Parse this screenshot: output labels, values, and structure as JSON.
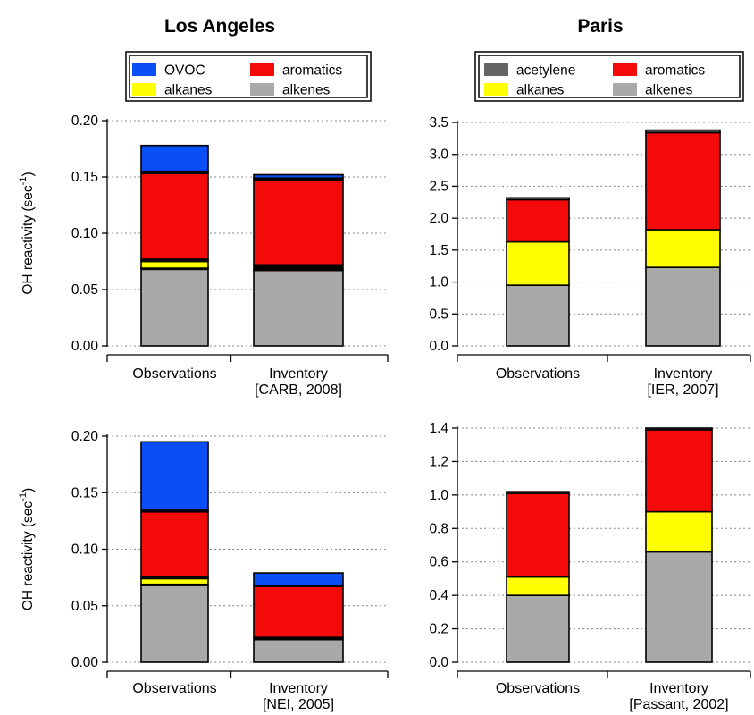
{
  "column_titles": [
    "Los Angeles",
    "Paris"
  ],
  "y_axis_label": "OH reactivity (sec",
  "y_axis_label_sup": "-1",
  "y_axis_label_end": ")",
  "colors": {
    "OVOC": "#0a4ff5",
    "aromatics": "#f50a0a",
    "alkanes": "#ffff00",
    "alkenes": "#a9a9a9",
    "acetylene": "#646464",
    "other": "#000000"
  },
  "chart_data": [
    {
      "type": "bar",
      "stacked": true,
      "column_title": "Los Angeles",
      "legend": {
        "entries": [
          "OVOC",
          "aromatics",
          "alkanes",
          "alkenes"
        ],
        "placement": "top"
      },
      "ylim": [
        0,
        0.2
      ],
      "yticks": [
        "0.00",
        "0.05",
        "0.10",
        "0.15",
        "0.20"
      ],
      "grid": true,
      "categories": [
        [
          "Observations"
        ],
        [
          "Inventory",
          "[CARB, 2008]"
        ]
      ],
      "series": [
        {
          "name": "alkenes",
          "values": [
            0.068,
            0.067
          ]
        },
        {
          "name": "other",
          "values": [
            0.001,
            0.005
          ]
        },
        {
          "name": "alkanes",
          "values": [
            0.006,
            0.0
          ]
        },
        {
          "name": "other",
          "values": [
            0.002,
            0.0
          ]
        },
        {
          "name": "aromatics",
          "values": [
            0.076,
            0.075
          ]
        },
        {
          "name": "other",
          "values": [
            0.002,
            0.002
          ]
        },
        {
          "name": "OVOC",
          "values": [
            0.023,
            0.003
          ]
        }
      ]
    },
    {
      "type": "bar",
      "stacked": true,
      "column_title": "Paris",
      "legend": {
        "entries": [
          "acetylene",
          "aromatics",
          "alkanes",
          "alkenes"
        ],
        "placement": "top"
      },
      "ylim": [
        0,
        3.5
      ],
      "yticks": [
        "0.0",
        "0.5",
        "1.0",
        "1.5",
        "2.0",
        "2.5",
        "3.0",
        "3.5"
      ],
      "grid": true,
      "categories": [
        [
          "Observations"
        ],
        [
          "Inventory",
          "[IER, 2007]"
        ]
      ],
      "series": [
        {
          "name": "alkenes",
          "values": [
            0.95,
            1.23
          ]
        },
        {
          "name": "alkanes",
          "values": [
            0.68,
            0.59
          ]
        },
        {
          "name": "aromatics",
          "values": [
            0.66,
            1.52
          ]
        },
        {
          "name": "acetylene",
          "values": [
            0.03,
            0.04
          ]
        }
      ]
    },
    {
      "type": "bar",
      "stacked": true,
      "column_title": "Los Angeles",
      "ylim": [
        0,
        0.2
      ],
      "yticks": [
        "0.00",
        "0.05",
        "0.10",
        "0.15",
        "0.20"
      ],
      "grid": true,
      "categories": [
        [
          "Observations"
        ],
        [
          "Inventory",
          "[NEI, 2005]"
        ]
      ],
      "series": [
        {
          "name": "alkenes",
          "values": [
            0.068,
            0.02
          ]
        },
        {
          "name": "other",
          "values": [
            0.001,
            0.002
          ]
        },
        {
          "name": "alkanes",
          "values": [
            0.005,
            0.0
          ]
        },
        {
          "name": "other",
          "values": [
            0.002,
            0.0
          ]
        },
        {
          "name": "aromatics",
          "values": [
            0.057,
            0.045
          ]
        },
        {
          "name": "other",
          "values": [
            0.002,
            0.001
          ]
        },
        {
          "name": "OVOC",
          "values": [
            0.06,
            0.011
          ]
        }
      ]
    },
    {
      "type": "bar",
      "stacked": true,
      "column_title": "Paris",
      "ylim": [
        0,
        1.4
      ],
      "yticks": [
        "0.0",
        "0.2",
        "0.4",
        "0.6",
        "0.8",
        "1.0",
        "1.2",
        "1.4"
      ],
      "grid": true,
      "categories": [
        [
          "Observations"
        ],
        [
          "Inventory",
          "[Passant, 2002]"
        ]
      ],
      "series": [
        {
          "name": "alkenes",
          "values": [
            0.4,
            0.66
          ]
        },
        {
          "name": "alkanes",
          "values": [
            0.11,
            0.24
          ]
        },
        {
          "name": "aromatics",
          "values": [
            0.5,
            0.49
          ]
        },
        {
          "name": "acetylene",
          "values": [
            0.01,
            0.01
          ]
        }
      ]
    }
  ]
}
